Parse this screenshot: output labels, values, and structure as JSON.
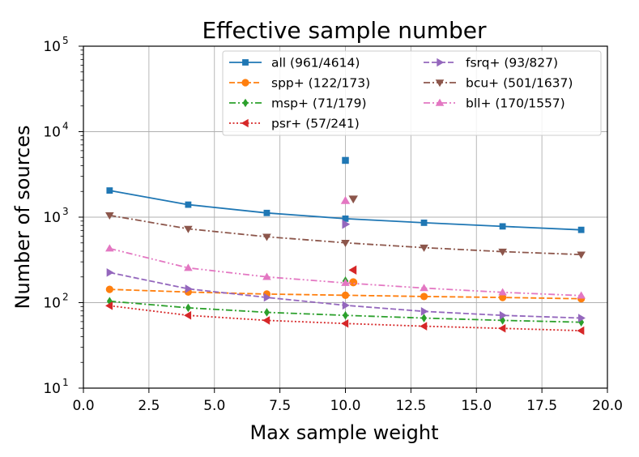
{
  "chart_data": {
    "type": "line",
    "title": "Effective sample number",
    "xlabel": "Max sample weight",
    "ylabel": "Number of sources",
    "xlim": [
      0,
      20
    ],
    "ylim": [
      10,
      100000
    ],
    "yscale": "log",
    "grid": true,
    "legend_position": "top-right",
    "x": [
      1,
      4,
      7,
      10,
      13,
      16,
      19
    ],
    "x_ticks": [
      0.0,
      2.5,
      5.0,
      7.5,
      10.0,
      12.5,
      15.0,
      17.5,
      20.0
    ],
    "x_tick_labels": [
      "0.0",
      "2.5",
      "5.0",
      "7.5",
      "10.0",
      "12.5",
      "15.0",
      "17.5",
      "20.0"
    ],
    "y_ticks": [
      10,
      100,
      1000,
      10000,
      100000
    ],
    "y_tick_labels": [
      {
        "base": "10",
        "exp": "1"
      },
      {
        "base": "10",
        "exp": "2"
      },
      {
        "base": "10",
        "exp": "3"
      },
      {
        "base": "10",
        "exp": "4"
      },
      {
        "base": "10",
        "exp": "5"
      }
    ],
    "series": [
      {
        "name": "all",
        "legend": "all (961/4614)",
        "color": "#1f77b4",
        "dash": "solid",
        "marker": "square",
        "values": [
          2050,
          1400,
          1120,
          960,
          860,
          780,
          710
        ],
        "extra_point": {
          "x": 10,
          "y": 4614
        }
      },
      {
        "name": "spp+",
        "legend": "spp+ (122/173)",
        "color": "#ff7f0e",
        "dash": "dashed",
        "marker": "circle",
        "values": [
          143,
          133,
          126,
          122,
          118,
          115,
          111
        ],
        "extra_point": {
          "x": 10.3,
          "y": 173
        }
      },
      {
        "name": "msp+",
        "legend": "msp+ (71/179)",
        "color": "#2ca02c",
        "dash": "dashdot",
        "marker": "diamond",
        "values": [
          104,
          87,
          77,
          71,
          66,
          62,
          59
        ],
        "extra_point": {
          "x": 10,
          "y": 179
        }
      },
      {
        "name": "psr+",
        "legend": "psr+ (57/241)",
        "color": "#d62728",
        "dash": "dotted",
        "marker": "triangle-left",
        "values": [
          92,
          71,
          62,
          57,
          53,
          50,
          47
        ],
        "extra_point": {
          "x": 10.3,
          "y": 241
        }
      },
      {
        "name": "fsrq+",
        "legend": "fsrq+ (93/827)",
        "color": "#9467bd",
        "dash": "dashed",
        "marker": "triangle-right",
        "values": [
          225,
          145,
          115,
          93,
          79,
          71,
          66
        ],
        "extra_point": {
          "x": 10,
          "y": 827
        }
      },
      {
        "name": "bcu+",
        "legend": "bcu+ (501/1637)",
        "color": "#8c564b",
        "dash": "dashdot",
        "marker": "triangle-down",
        "values": [
          1050,
          730,
          590,
          501,
          440,
          395,
          365
        ],
        "extra_point": {
          "x": 10.3,
          "y": 1637
        }
      },
      {
        "name": "bll+",
        "legend": "bll+ (170/1557)",
        "color": "#e377c2",
        "dash": "dashdotdot",
        "marker": "triangle-up",
        "values": [
          430,
          255,
          200,
          170,
          148,
          132,
          121
        ],
        "extra_point": {
          "x": 10,
          "y": 1557
        }
      }
    ]
  }
}
